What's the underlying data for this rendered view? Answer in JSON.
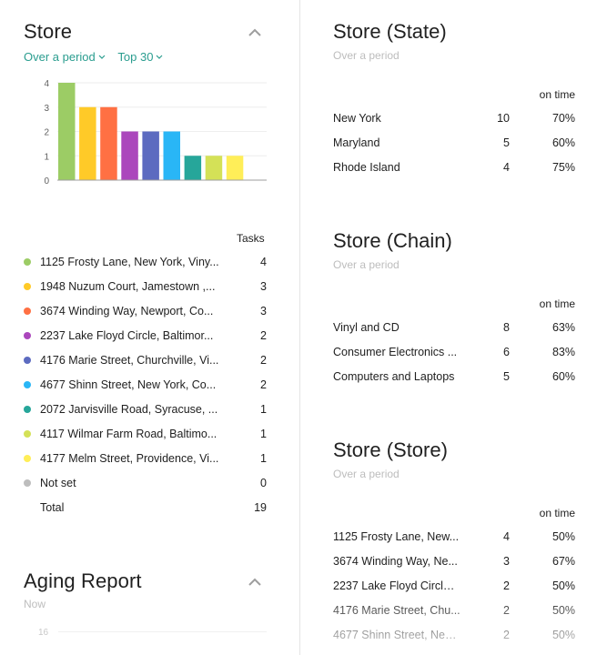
{
  "store_card": {
    "title": "Store",
    "filters": {
      "period": "Over a period",
      "top": "Top 30"
    },
    "tasks_header": "Tasks",
    "items": [
      {
        "label": "1125 Frosty Lane, New York, Viny...",
        "value": "4",
        "color": "#9ccc65"
      },
      {
        "label": "1948 Nuzum Court, Jamestown ,...",
        "value": "3",
        "color": "#ffca28"
      },
      {
        "label": "3674 Winding Way, Newport, Co...",
        "value": "3",
        "color": "#ff7043"
      },
      {
        "label": "2237 Lake Floyd Circle, Baltimor...",
        "value": "2",
        "color": "#ab47bc"
      },
      {
        "label": "4176 Marie Street, Churchville, Vi...",
        "value": "2",
        "color": "#5c6bc0"
      },
      {
        "label": "4677 Shinn Street, New York, Co...",
        "value": "2",
        "color": "#29b6f6"
      },
      {
        "label": "2072 Jarvisville Road, Syracuse, ...",
        "value": "1",
        "color": "#26a69a"
      },
      {
        "label": "4117 Wilmar Farm Road, Baltimo...",
        "value": "1",
        "color": "#d4e157"
      },
      {
        "label": "4177 Melm Street, Providence, Vi...",
        "value": "1",
        "color": "#ffee58"
      },
      {
        "label": "Not set",
        "value": "0",
        "color": "#bdbdbd"
      }
    ],
    "total_label": "Total",
    "total_value": "19"
  },
  "chart_data": {
    "type": "bar",
    "categories": [
      "1125 Frosty Lane",
      "1948 Nuzum Court",
      "3674 Winding Way",
      "2237 Lake Floyd Circle",
      "4176 Marie Street",
      "4677 Shinn Street",
      "2072 Jarvisville Road",
      "4117 Wilmar Farm Road",
      "4177 Melm Street"
    ],
    "values": [
      4,
      3,
      3,
      2,
      2,
      2,
      1,
      1,
      1
    ],
    "colors": [
      "#9ccc65",
      "#ffca28",
      "#ff7043",
      "#ab47bc",
      "#5c6bc0",
      "#29b6f6",
      "#26a69a",
      "#d4e157",
      "#ffee58"
    ],
    "yticks": [
      "0",
      "1",
      "2",
      "3",
      "4"
    ],
    "ylim": [
      0,
      4
    ],
    "title": "",
    "xlabel": "",
    "ylabel": "",
    "grid": true
  },
  "aging_card": {
    "title": "Aging Report",
    "subtitle": "Now",
    "axis_label": "16"
  },
  "state_card": {
    "title": "Store (State)",
    "subtitle": "Over a period",
    "ontime_header": "on time",
    "rows": [
      {
        "name": "New York",
        "count": "10",
        "pct": "70%"
      },
      {
        "name": "Maryland",
        "count": "5",
        "pct": "60%"
      },
      {
        "name": "Rhode Island",
        "count": "4",
        "pct": "75%"
      }
    ]
  },
  "chain_card": {
    "title": "Store (Chain)",
    "subtitle": "Over a period",
    "ontime_header": "on time",
    "rows": [
      {
        "name": "Vinyl and CD",
        "count": "8",
        "pct": "63%"
      },
      {
        "name": "Consumer Electronics ...",
        "count": "6",
        "pct": "83%"
      },
      {
        "name": "Computers and Laptops",
        "count": "5",
        "pct": "60%"
      }
    ]
  },
  "storestore_card": {
    "title": "Store (Store)",
    "subtitle": "Over a period",
    "ontime_header": "on time",
    "rows": [
      {
        "name": "1125 Frosty Lane, New...",
        "count": "4",
        "pct": "50%"
      },
      {
        "name": "3674 Winding Way, Ne...",
        "count": "3",
        "pct": "67%"
      },
      {
        "name": "2237 Lake Floyd Circle,...",
        "count": "2",
        "pct": "50%"
      },
      {
        "name": "4176 Marie Street, Chu...",
        "count": "2",
        "pct": "50%"
      },
      {
        "name": "4677 Shinn Street, New...",
        "count": "2",
        "pct": "50%"
      }
    ]
  }
}
